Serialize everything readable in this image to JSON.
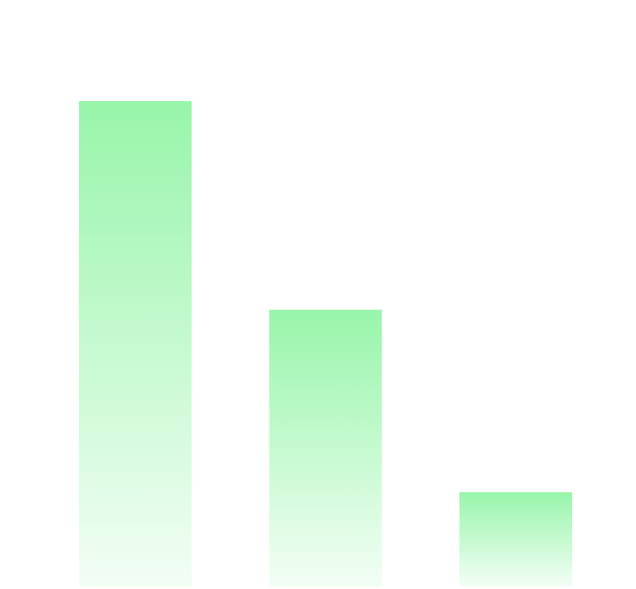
{
  "chart_data": {
    "type": "bar",
    "categories": [
      null,
      null,
      null
    ],
    "values": [
      100,
      57,
      19.4
    ],
    "color": "#98f5aa",
    "ylim": [
      0,
      100
    ]
  }
}
